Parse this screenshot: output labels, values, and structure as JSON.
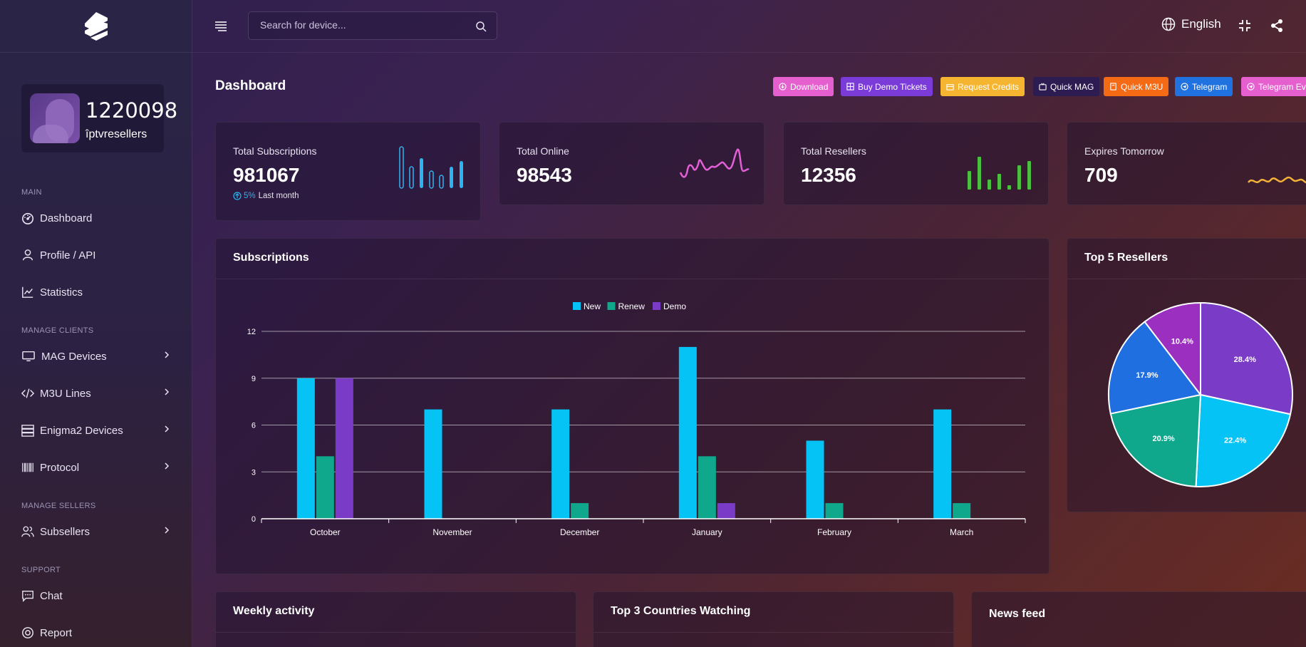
{
  "topbar": {
    "search_placeholder": "Search for device...",
    "language": "English"
  },
  "profile": {
    "id": "1220098",
    "username": "îptvresellers"
  },
  "sidebar": {
    "sections": [
      "Main",
      "Manage Clients",
      "Manage Sellers",
      "Support"
    ],
    "items": [
      {
        "label": "Dashboard",
        "icon": "dashboard-icon"
      },
      {
        "label": "Profile / API",
        "icon": "user-icon"
      },
      {
        "label": "Statistics",
        "icon": "chart-line-icon"
      },
      {
        "label": "MAG Devices",
        "icon": "monitor-icon"
      },
      {
        "label": "M3U Lines",
        "icon": "code-icon"
      },
      {
        "label": "Enigma2 Devices",
        "icon": "server-icon"
      },
      {
        "label": "Protocol",
        "icon": "barcode-icon"
      },
      {
        "label": "Subsellers",
        "icon": "users-icon"
      },
      {
        "label": "Chat",
        "icon": "chat-icon"
      },
      {
        "label": "Report",
        "icon": "lifebuoy-icon"
      }
    ]
  },
  "page": {
    "title": "Dashboard"
  },
  "quick_buttons": [
    {
      "label": "Download",
      "color": "#e65fcf"
    },
    {
      "label": "Buy Demo Tickets",
      "color": "#7a3bd8"
    },
    {
      "label": "Request Credits",
      "color": "#f5b530"
    },
    {
      "label": "Quick MAG",
      "color": "#2d1c52"
    },
    {
      "label": "Quick M3U",
      "color": "#f56a14"
    },
    {
      "label": "Telegram",
      "color": "#1f72e0"
    },
    {
      "label": "Telegram Ev",
      "color": "#e65fcf"
    }
  ],
  "stats": [
    {
      "label": "Total Subscriptions",
      "value": "981067",
      "sub_pct": "5%",
      "sub_text": "Last month",
      "color": "#2bb4f0"
    },
    {
      "label": "Total Online",
      "value": "98543",
      "color": "#e25fd6"
    },
    {
      "label": "Total Resellers",
      "value": "12356",
      "color": "#4ac13e"
    },
    {
      "label": "Expires Tomorrow",
      "value": "709",
      "color": "#f3b13a"
    }
  ],
  "cards": {
    "subscriptions": "Subscriptions",
    "top_resellers": "Top 5 Resellers",
    "weekly": "Weekly activity",
    "countries": "Top 3 Countries Watching",
    "news": "News feed"
  },
  "chart_data": [
    {
      "type": "bar",
      "title": "Subscriptions",
      "categories": [
        "October",
        "November",
        "December",
        "January",
        "February",
        "March"
      ],
      "series": [
        {
          "name": "New",
          "color": "#06c3f6",
          "values": [
            9,
            7,
            7,
            11,
            5,
            7
          ]
        },
        {
          "name": "Renew",
          "color": "#0fa88d",
          "values": [
            4,
            0,
            1,
            4,
            1,
            1
          ]
        },
        {
          "name": "Demo",
          "color": "#7a3bc6",
          "values": [
            9,
            0,
            0,
            1,
            0,
            0
          ]
        }
      ],
      "yticks": [
        0,
        3,
        6,
        9,
        12
      ],
      "ylim": [
        0,
        12
      ],
      "grid": true,
      "legend": "top-center"
    },
    {
      "type": "pie",
      "title": "Top 5 Resellers",
      "values": [
        28.4,
        22.4,
        20.9,
        17.9,
        10.4
      ],
      "labels": [
        "28.4%",
        "22.4%",
        "20.9%",
        "17.9%",
        "10.4%"
      ],
      "colors": [
        "#7a3bc6",
        "#06c3f6",
        "#0fa88d",
        "#1f6fe0",
        "#9b30c0"
      ]
    }
  ]
}
